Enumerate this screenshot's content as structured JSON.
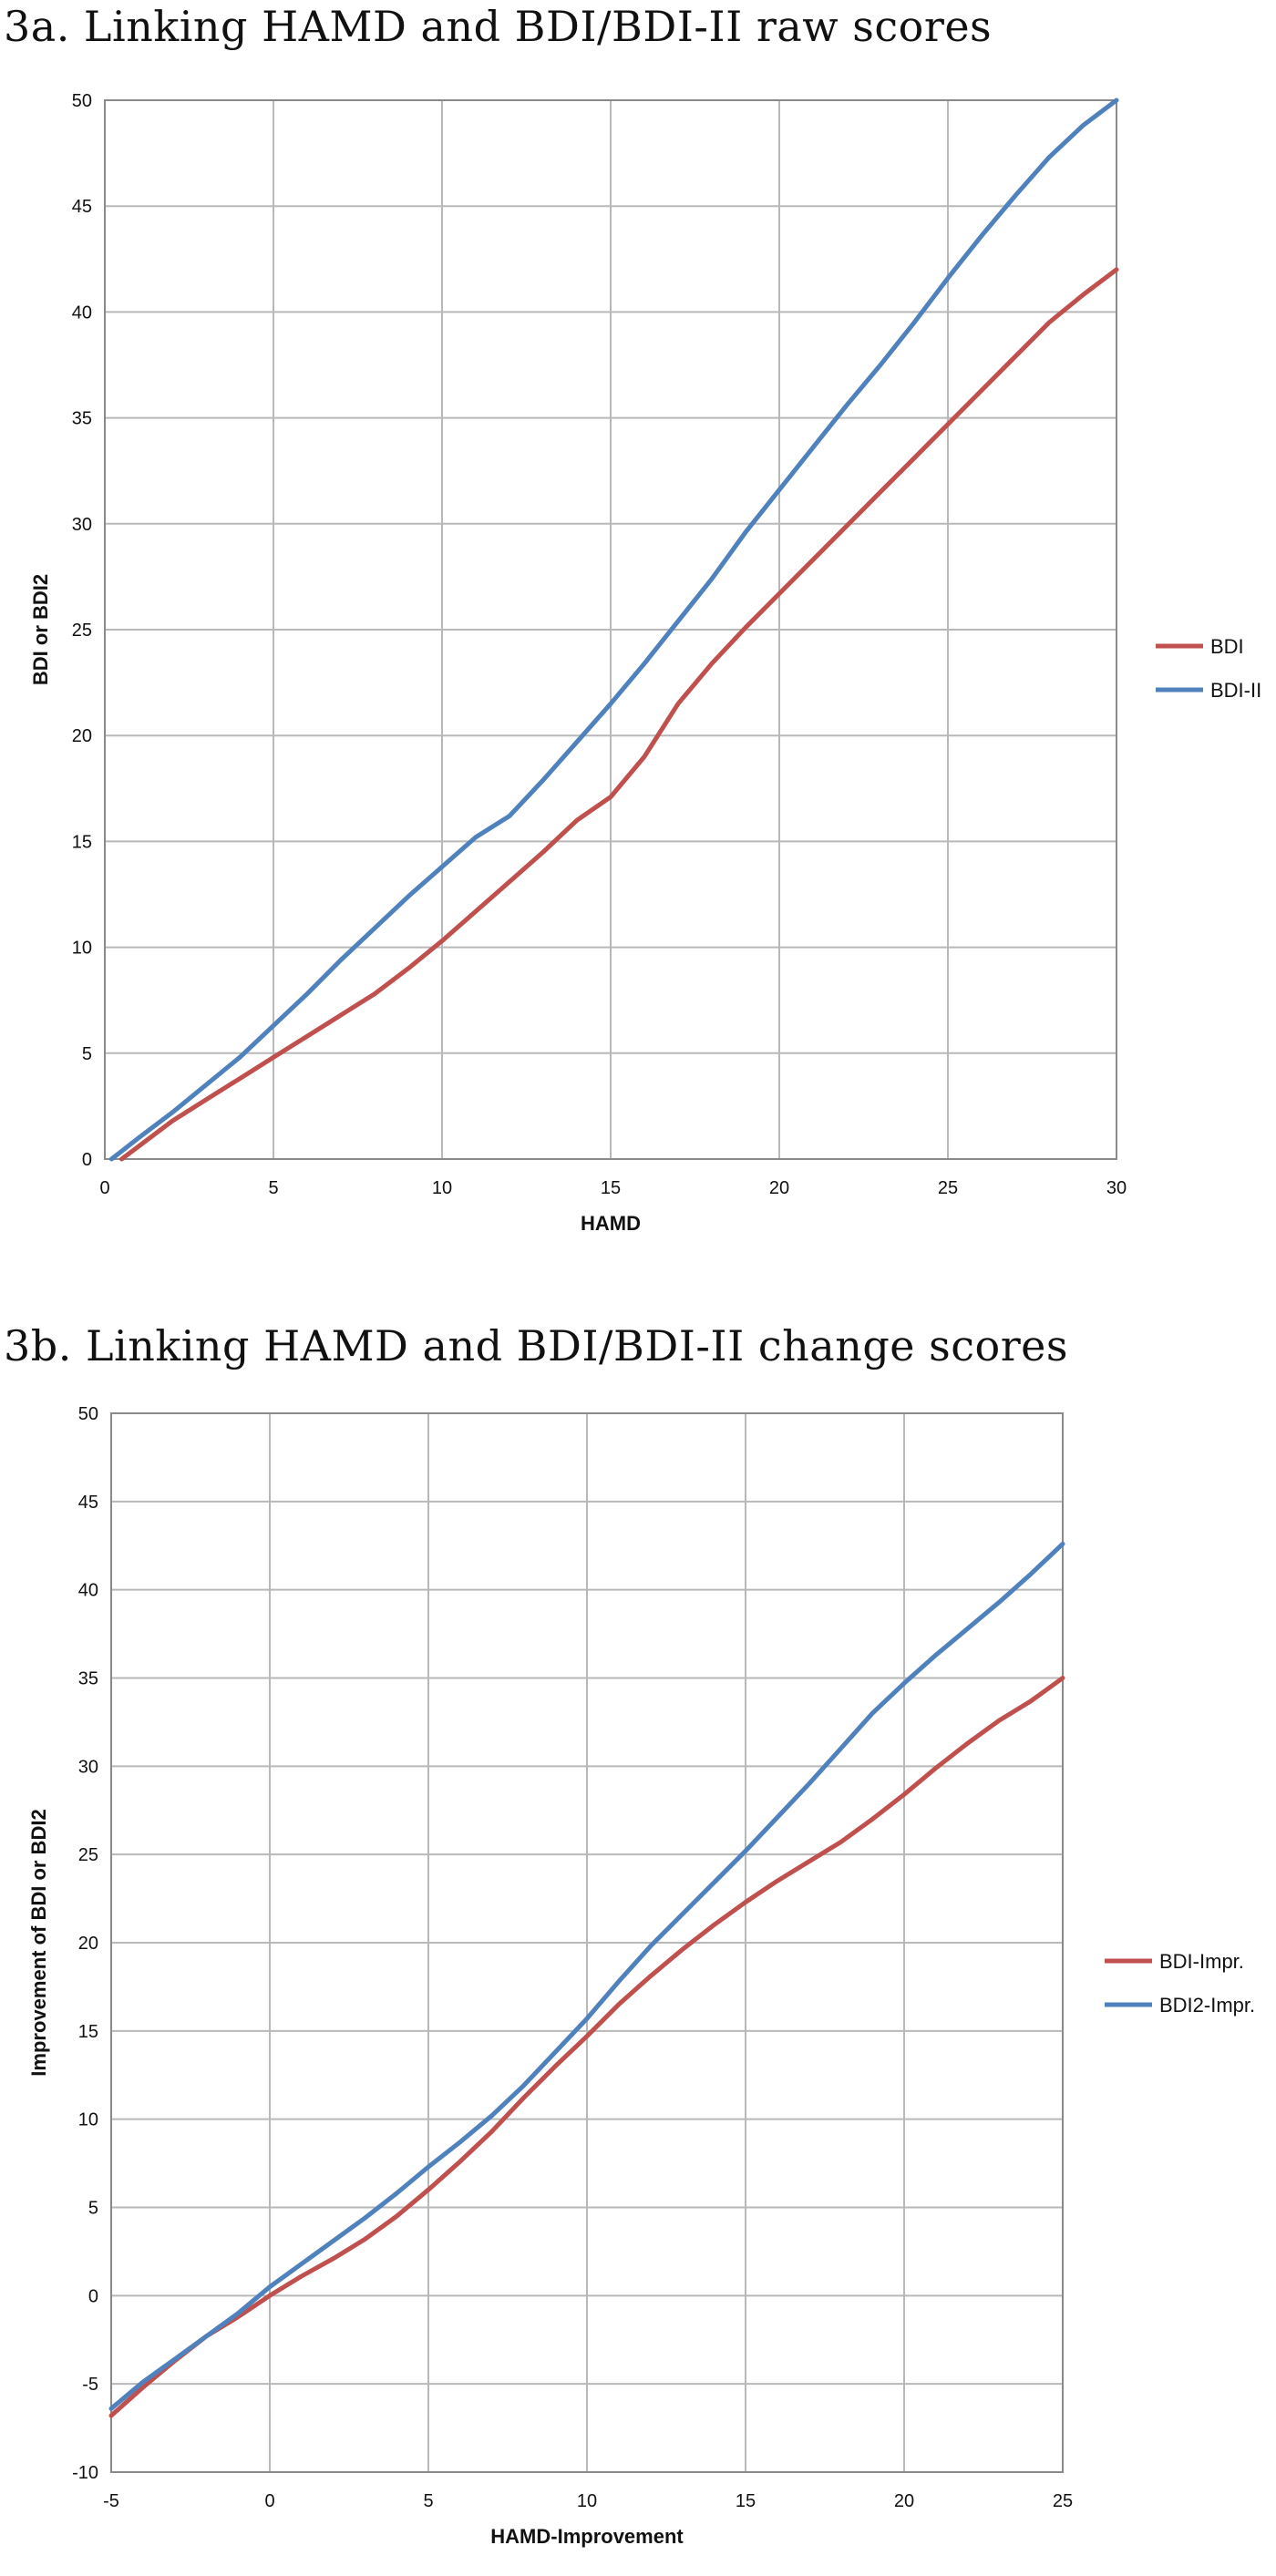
{
  "chart_data": [
    {
      "type": "line",
      "title": "3a. Linking HAMD and BDI/BDI-II raw scores",
      "xlabel": "HAMD",
      "ylabel": "BDI or BDI2",
      "xlim": [
        0,
        30
      ],
      "ylim": [
        0,
        50
      ],
      "xticks": [
        0,
        5,
        10,
        15,
        20,
        25,
        30
      ],
      "yticks": [
        0,
        5,
        10,
        15,
        20,
        25,
        30,
        35,
        40,
        45,
        50
      ],
      "grid": true,
      "legend_position": "right",
      "series": [
        {
          "name": "BDI",
          "color": "#c0504d",
          "x": [
            0.5,
            1,
            2,
            3,
            4,
            5,
            6,
            7,
            8,
            9,
            10,
            11,
            12,
            13,
            14,
            15,
            16,
            17,
            18,
            19,
            20,
            21,
            22,
            23,
            24,
            25,
            26,
            27,
            28,
            29,
            30
          ],
          "y": [
            0,
            0.6,
            1.8,
            2.8,
            3.8,
            4.8,
            5.8,
            6.8,
            7.8,
            9.0,
            10.3,
            11.7,
            13.1,
            14.5,
            16.0,
            17.1,
            19.0,
            21.5,
            23.4,
            25.1,
            26.7,
            28.3,
            29.9,
            31.5,
            33.1,
            34.7,
            36.3,
            37.9,
            39.5,
            40.8,
            42.0
          ]
        },
        {
          "name": "BDI-II",
          "color": "#4f81bd",
          "x": [
            0.2,
            1,
            2,
            3,
            4,
            5,
            6,
            7,
            8,
            9,
            10,
            11,
            12,
            13,
            14,
            15,
            16,
            17,
            18,
            19,
            20,
            21,
            22,
            23,
            24,
            25,
            26,
            27,
            28,
            29,
            30
          ],
          "y": [
            0,
            1.0,
            2.2,
            3.5,
            4.8,
            6.3,
            7.8,
            9.4,
            10.9,
            12.4,
            13.8,
            15.2,
            16.2,
            17.9,
            19.7,
            21.5,
            23.4,
            25.4,
            27.4,
            29.6,
            31.6,
            33.6,
            35.6,
            37.5,
            39.5,
            41.6,
            43.6,
            45.5,
            47.3,
            48.8,
            50.0
          ]
        }
      ]
    },
    {
      "type": "line",
      "title": "3b. Linking HAMD and BDI/BDI-II change scores",
      "xlabel": "HAMD-Improvement",
      "ylabel": "Improvement of BDI or BDI2",
      "xlim": [
        -5,
        25
      ],
      "ylim": [
        -10,
        50
      ],
      "xticks": [
        -5,
        0,
        5,
        10,
        15,
        20,
        25
      ],
      "yticks": [
        -10,
        -5,
        0,
        5,
        10,
        15,
        20,
        25,
        30,
        35,
        40,
        45,
        50
      ],
      "grid": true,
      "legend_position": "right",
      "series": [
        {
          "name": "BDI-Impr.",
          "color": "#c0504d",
          "x": [
            -5,
            -4,
            -3,
            -2,
            -1,
            0,
            1,
            2,
            3,
            4,
            5,
            6,
            7,
            8,
            9,
            10,
            11,
            12,
            13,
            14,
            15,
            16,
            17,
            18,
            19,
            20,
            21,
            22,
            23,
            24,
            25
          ],
          "y": [
            -6.8,
            -5.2,
            -3.7,
            -2.3,
            -1.2,
            0,
            1.1,
            2.1,
            3.2,
            4.5,
            6.0,
            7.6,
            9.3,
            11.2,
            13.0,
            14.7,
            16.5,
            18.1,
            19.6,
            21.0,
            22.3,
            23.5,
            24.6,
            25.7,
            27.0,
            28.4,
            29.9,
            31.3,
            32.6,
            33.7,
            35.0
          ]
        },
        {
          "name": "BDI2-Impr.",
          "color": "#4f81bd",
          "x": [
            -5,
            -4,
            -3,
            -2,
            -1,
            0,
            1,
            2,
            3,
            4,
            5,
            6,
            7,
            8,
            9,
            10,
            11,
            12,
            13,
            14,
            15,
            16,
            17,
            18,
            19,
            20,
            21,
            22,
            23,
            24,
            25
          ],
          "y": [
            -6.4,
            -4.9,
            -3.6,
            -2.3,
            -1.0,
            0.5,
            1.8,
            3.1,
            4.4,
            5.8,
            7.3,
            8.7,
            10.2,
            11.9,
            13.8,
            15.7,
            17.8,
            19.8,
            21.6,
            23.4,
            25.2,
            27.1,
            29.0,
            31.0,
            33.0,
            34.7,
            36.3,
            37.8,
            39.3,
            40.9,
            42.6
          ]
        }
      ]
    }
  ]
}
